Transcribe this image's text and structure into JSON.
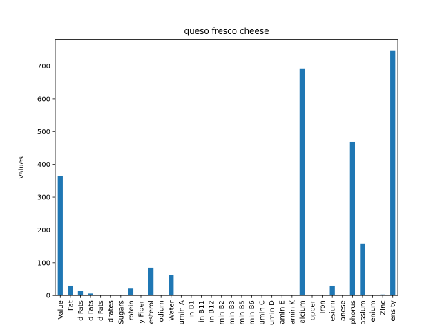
{
  "chart_data": {
    "type": "bar",
    "title": "queso fresco cheese",
    "xlabel": "",
    "ylabel": "Values",
    "ylim": [
      0,
      780
    ],
    "yticks": [
      0,
      100,
      200,
      300,
      400,
      500,
      600,
      700
    ],
    "grid": false,
    "bar_color": "#1f77b4",
    "categories": [
      "Value",
      "Fat",
      "d Fats",
      "d Fats",
      "d Fats",
      "drates",
      "Sugars",
      "rotein",
      "y Fiber",
      "esterol",
      "odium",
      "Water",
      "umin A",
      "in B1",
      "in B11",
      "in B12",
      "min B2",
      "min B3",
      "min B5",
      "min B6",
      "umin C",
      "umin D",
      "amin E",
      "amin K",
      "alcium",
      "opper",
      "Iron",
      "esium",
      "anese",
      "phorus",
      "assium",
      "enium",
      "Zinc",
      "ensity"
    ],
    "values": [
      365,
      30,
      15,
      6,
      1,
      2,
      2,
      21,
      0,
      85,
      0,
      62,
      0,
      0,
      0,
      0,
      0,
      0,
      0,
      0,
      0,
      0,
      0,
      0,
      691,
      0,
      0,
      30,
      0,
      469,
      157,
      0,
      3,
      746
    ]
  }
}
